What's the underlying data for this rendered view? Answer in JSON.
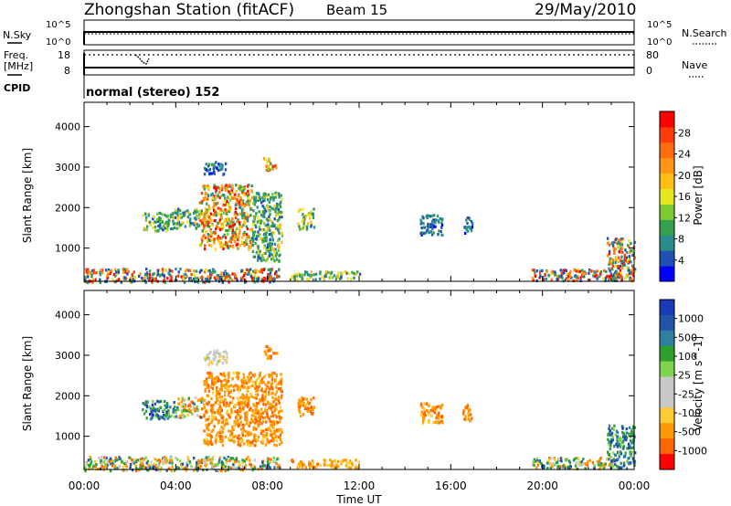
{
  "header": {
    "station_title": "Zhongshan Station (fitACF)",
    "beam": "Beam 15",
    "date": "29/May/2010"
  },
  "top_panels": {
    "nsky_label": "N.Sky",
    "nsearch_label": "N.Search",
    "nsky_ticks": [
      "10^5",
      "10^0"
    ],
    "nsearch_ticks": [
      "10^5",
      "10^0"
    ],
    "freq_label": "Freq.",
    "freq_unit": "[MHz]",
    "freq_ticks": [
      "18",
      "8"
    ],
    "nave_label": "Nave",
    "nave_ticks": [
      "80",
      "0"
    ],
    "cpid_label": "CPID",
    "cpid_text": "normal (stereo) 152"
  },
  "colors": {
    "power_scale": [
      "#0000ff",
      "#1f50b4",
      "#2b8c8c",
      "#34a050",
      "#7ec832",
      "#e6e61e",
      "#ffbe14",
      "#ff9614",
      "#ff6e0a",
      "#ff3c0a",
      "#ff0000"
    ],
    "velocity_scale": [
      "#ff0000",
      "#ff6600",
      "#ff9900",
      "#ffcc33",
      "#c8c8c8",
      "#c8c8c8",
      "#7fd34f",
      "#2ea02e",
      "#2f7f9f",
      "#2255aa",
      "#1a3ab8"
    ]
  },
  "chart_data": [
    {
      "type": "heatmap",
      "panel": "power",
      "xlabel": "",
      "ylabel": "Slant Range [km]",
      "xlim": [
        0,
        24
      ],
      "ylim": [
        180,
        4600
      ],
      "yticks": [
        1000,
        2000,
        3000,
        4000
      ],
      "colorbar_label": "Power [dB]",
      "colorbar_ticks": [
        "4",
        "8",
        "12",
        "16",
        "20",
        "24",
        "28"
      ],
      "regions": [
        {
          "x": [
            0.0,
            8.5
          ],
          "y": [
            180,
            520
          ],
          "value": "mixed"
        },
        {
          "x": [
            2.5,
            3.8
          ],
          "y": [
            1450,
            1900
          ],
          "value": "medium"
        },
        {
          "x": [
            3.8,
            5.0
          ],
          "y": [
            1500,
            2000
          ],
          "value": "medium"
        },
        {
          "x": [
            5.0,
            7.3
          ],
          "y": [
            1000,
            2600
          ],
          "value": "high"
        },
        {
          "x": [
            7.3,
            8.6
          ],
          "y": [
            700,
            2400
          ],
          "value": "medium"
        },
        {
          "x": [
            5.2,
            6.2
          ],
          "y": [
            2850,
            3150
          ],
          "value": "low"
        },
        {
          "x": [
            7.8,
            8.4
          ],
          "y": [
            2950,
            3250
          ],
          "value": "high"
        },
        {
          "x": [
            9.3,
            10.0
          ],
          "y": [
            1500,
            2000
          ],
          "value": "medium"
        },
        {
          "x": [
            9.0,
            12.0
          ],
          "y": [
            250,
            450
          ],
          "value": "medium"
        },
        {
          "x": [
            14.6,
            15.6
          ],
          "y": [
            1350,
            1850
          ],
          "value": "low"
        },
        {
          "x": [
            16.5,
            16.9
          ],
          "y": [
            1400,
            1800
          ],
          "value": "low"
        },
        {
          "x": [
            19.5,
            23.2
          ],
          "y": [
            220,
            500
          ],
          "value": "mixed"
        },
        {
          "x": [
            22.8,
            24.0
          ],
          "y": [
            220,
            1300
          ],
          "value": "mixed"
        }
      ]
    },
    {
      "type": "heatmap",
      "panel": "velocity",
      "xlabel": "Time UT",
      "ylabel": "Slant Range [km]",
      "xlim": [
        0,
        24
      ],
      "ylim": [
        180,
        4600
      ],
      "yticks": [
        1000,
        2000,
        3000,
        4000
      ],
      "xtick_labels": [
        "00:00",
        "04:00",
        "08:00",
        "12:00",
        "16:00",
        "20:00",
        "00:00"
      ],
      "xticks": [
        0,
        4,
        8,
        12,
        16,
        20,
        24
      ],
      "colorbar_label": "Velocity [m s^-1]",
      "colorbar_ticks": [
        "1000",
        "500",
        "100",
        "25",
        "-25",
        "-100",
        "-500",
        "-1000"
      ],
      "regions": [
        {
          "x": [
            0.0,
            8.5
          ],
          "y": [
            180,
            520
          ],
          "value": "mixed"
        },
        {
          "x": [
            2.5,
            4.0
          ],
          "y": [
            1450,
            1900
          ],
          "value": "positive"
        },
        {
          "x": [
            4.0,
            5.2
          ],
          "y": [
            1500,
            2000
          ],
          "value": "mixed"
        },
        {
          "x": [
            5.2,
            8.6
          ],
          "y": [
            800,
            2600
          ],
          "value": "negative"
        },
        {
          "x": [
            5.2,
            6.2
          ],
          "y": [
            2800,
            3150
          ],
          "value": "near-zero"
        },
        {
          "x": [
            7.8,
            8.4
          ],
          "y": [
            2950,
            3250
          ],
          "value": "negative"
        },
        {
          "x": [
            9.3,
            10.0
          ],
          "y": [
            1500,
            2000
          ],
          "value": "negative"
        },
        {
          "x": [
            9.0,
            12.0
          ],
          "y": [
            250,
            450
          ],
          "value": "negative"
        },
        {
          "x": [
            14.6,
            15.6
          ],
          "y": [
            1350,
            1850
          ],
          "value": "negative"
        },
        {
          "x": [
            16.5,
            16.9
          ],
          "y": [
            1400,
            1800
          ],
          "value": "negative"
        },
        {
          "x": [
            19.5,
            23.2
          ],
          "y": [
            220,
            500
          ],
          "value": "mixed"
        },
        {
          "x": [
            22.8,
            24.0
          ],
          "y": [
            220,
            1300
          ],
          "value": "positive"
        }
      ]
    }
  ]
}
